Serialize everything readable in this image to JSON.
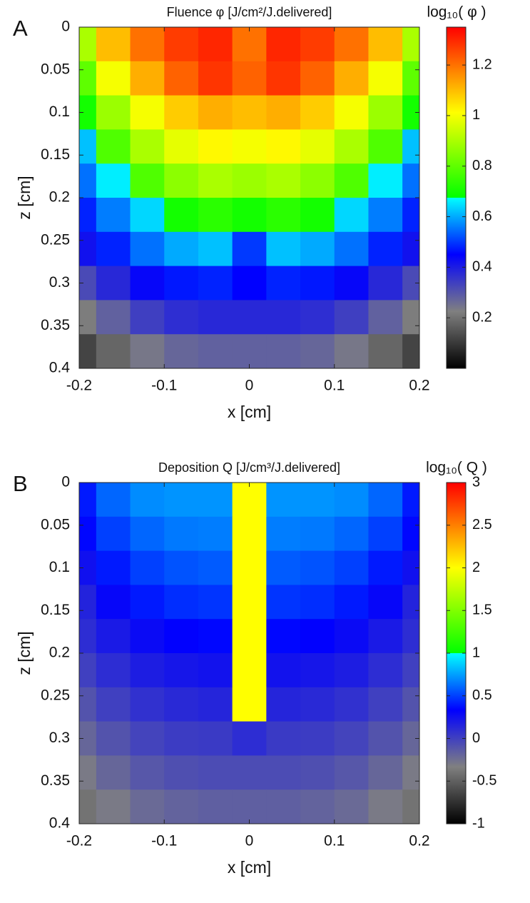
{
  "chart_data": [
    {
      "type": "heatmap",
      "panel": "A",
      "title": "Fluence φ [J/cm²/J.delivered]",
      "xlabel": "x [cm]",
      "ylabel": "z [cm]",
      "xlim": [
        -0.2,
        0.2
      ],
      "xticks": [
        -0.2,
        -0.1,
        0,
        0.1,
        0.2
      ],
      "ylim": [
        0,
        0.4
      ],
      "yticks": [
        0,
        0.05,
        0.1,
        0.15,
        0.2,
        0.25,
        0.3,
        0.35,
        0.4
      ],
      "y_inverted": true,
      "colorbar_label": "log₁₀( φ )",
      "clim": [
        0,
        1.35
      ],
      "cticks": [
        0.2,
        0.4,
        0.6,
        0.8,
        1,
        1.2
      ],
      "colormap": [
        "#000000",
        "#808080",
        "#0000ff",
        "#00ffff",
        "#00ff00",
        "#ffff00",
        "#ff0000"
      ],
      "x": [
        -0.2,
        -0.16,
        -0.12,
        -0.08,
        -0.04,
        0,
        0.04,
        0.08,
        0.12,
        0.16,
        0.2
      ],
      "y": [
        0.02,
        0.06,
        0.1,
        0.14,
        0.18,
        0.22,
        0.26,
        0.3,
        0.34,
        0.38
      ],
      "z": [
        [
          0.9,
          1.1,
          1.2,
          1.27,
          1.3,
          1.2,
          1.3,
          1.27,
          1.2,
          1.1,
          0.9
        ],
        [
          0.8,
          1.0,
          1.12,
          1.22,
          1.28,
          1.22,
          1.28,
          1.22,
          1.12,
          1.0,
          0.8
        ],
        [
          0.7,
          0.88,
          1.0,
          1.08,
          1.12,
          1.1,
          1.12,
          1.08,
          1.0,
          0.88,
          0.7
        ],
        [
          0.62,
          0.78,
          0.9,
          0.98,
          1.02,
          1.0,
          1.02,
          0.98,
          0.9,
          0.78,
          0.62
        ],
        [
          0.55,
          0.66,
          0.78,
          0.86,
          0.9,
          0.88,
          0.9,
          0.86,
          0.78,
          0.66,
          0.55
        ],
        [
          0.48,
          0.56,
          0.64,
          0.7,
          0.73,
          0.7,
          0.73,
          0.7,
          0.64,
          0.56,
          0.48
        ],
        [
          0.42,
          0.48,
          0.55,
          0.6,
          0.62,
          0.5,
          0.62,
          0.6,
          0.55,
          0.48,
          0.42
        ],
        [
          0.32,
          0.38,
          0.44,
          0.47,
          0.48,
          0.45,
          0.48,
          0.47,
          0.44,
          0.38,
          0.32
        ],
        [
          0.22,
          0.28,
          0.34,
          0.37,
          0.38,
          0.38,
          0.38,
          0.37,
          0.34,
          0.28,
          0.22
        ],
        [
          0.12,
          0.18,
          0.24,
          0.27,
          0.28,
          0.28,
          0.28,
          0.27,
          0.24,
          0.18,
          0.12
        ]
      ]
    },
    {
      "type": "heatmap",
      "panel": "B",
      "title": "Deposition Q [J/cm³/J.delivered]",
      "xlabel": "x [cm]",
      "ylabel": "z [cm]",
      "xlim": [
        -0.2,
        0.2
      ],
      "xticks": [
        -0.2,
        -0.1,
        0,
        0.1,
        0.2
      ],
      "ylim": [
        0,
        0.4
      ],
      "yticks": [
        0,
        0.05,
        0.1,
        0.15,
        0.2,
        0.25,
        0.3,
        0.35,
        0.4
      ],
      "y_inverted": true,
      "colorbar_label": "log₁₀( Q )",
      "clim": [
        -1,
        3
      ],
      "cticks": [
        -1,
        -0.5,
        0,
        0.5,
        1,
        1.5,
        2,
        2.5,
        3
      ],
      "colormap": [
        "#000000",
        "#808080",
        "#0000ff",
        "#00ffff",
        "#00ff00",
        "#ffff00",
        "#ff0000"
      ],
      "x": [
        -0.2,
        -0.16,
        -0.12,
        -0.08,
        -0.04,
        0,
        0.04,
        0.08,
        0.12,
        0.16,
        0.2
      ],
      "y": [
        0.02,
        0.06,
        0.1,
        0.14,
        0.18,
        0.22,
        0.26,
        0.3,
        0.34,
        0.38
      ],
      "z": [
        [
          0.4,
          0.6,
          0.7,
          0.72,
          0.72,
          2.0,
          0.72,
          0.72,
          0.7,
          0.6,
          0.4
        ],
        [
          0.35,
          0.5,
          0.6,
          0.65,
          0.66,
          2.0,
          0.66,
          0.65,
          0.6,
          0.5,
          0.35
        ],
        [
          0.25,
          0.4,
          0.5,
          0.55,
          0.57,
          2.0,
          0.57,
          0.55,
          0.5,
          0.4,
          0.25
        ],
        [
          0.15,
          0.3,
          0.4,
          0.45,
          0.47,
          2.0,
          0.47,
          0.45,
          0.4,
          0.3,
          0.15
        ],
        [
          0.1,
          0.2,
          0.28,
          0.33,
          0.35,
          2.0,
          0.35,
          0.33,
          0.28,
          0.2,
          0.1
        ],
        [
          0.0,
          0.1,
          0.18,
          0.22,
          0.24,
          2.0,
          0.24,
          0.22,
          0.18,
          0.1,
          0.0
        ],
        [
          -0.1,
          0.0,
          0.08,
          0.12,
          0.14,
          2.0,
          0.14,
          0.12,
          0.08,
          0.0,
          -0.1
        ],
        [
          -0.2,
          -0.1,
          -0.02,
          0.02,
          0.03,
          0.1,
          0.03,
          0.02,
          -0.02,
          -0.1,
          -0.2
        ],
        [
          -0.3,
          -0.2,
          -0.12,
          -0.08,
          -0.06,
          -0.06,
          -0.06,
          -0.08,
          -0.12,
          -0.2,
          -0.3
        ],
        [
          -0.4,
          -0.3,
          -0.22,
          -0.18,
          -0.16,
          -0.16,
          -0.16,
          -0.18,
          -0.22,
          -0.3,
          -0.4
        ]
      ]
    }
  ]
}
